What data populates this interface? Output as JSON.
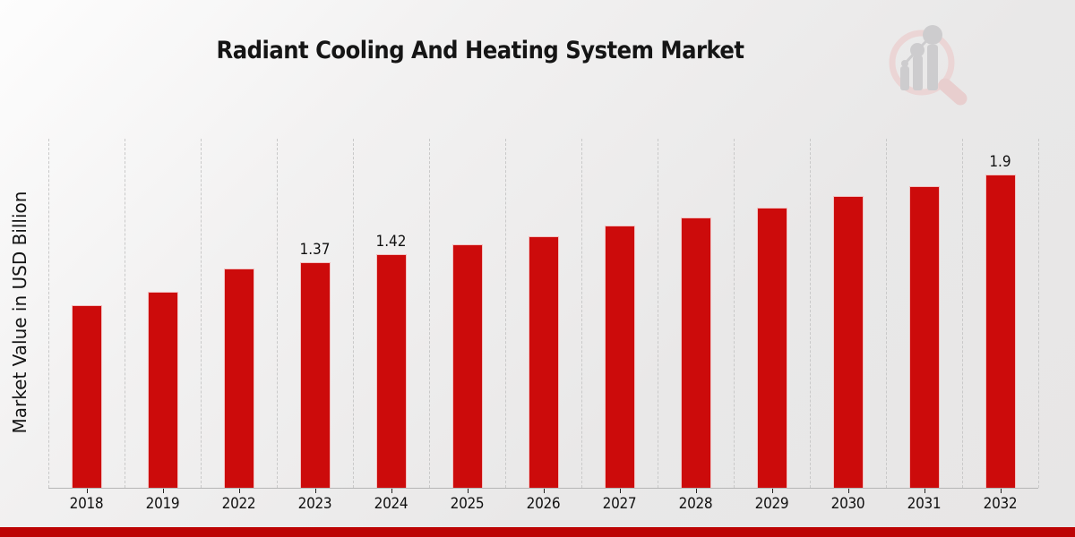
{
  "title": "Radiant Cooling And Heating System Market",
  "ylabel": "Market Value in USD Billion",
  "watermark_icon": "market-research-future-logo",
  "colors": {
    "bar": "#cc0b0b",
    "bottom_strip": "#bd0404",
    "grid": "#c9c9c9",
    "axis": "#b5b5b5",
    "text": "#111111",
    "watermark_pink": "#ecd2d2",
    "watermark_gray": "#c8c8ca"
  },
  "chart_data": {
    "type": "bar",
    "title": "Radiant Cooling And Heating System Market",
    "xlabel": "",
    "ylabel": "Market Value in USD Billion",
    "categories": [
      "2018",
      "2019",
      "2022",
      "2023",
      "2024",
      "2025",
      "2026",
      "2027",
      "2028",
      "2029",
      "2030",
      "2031",
      "2032"
    ],
    "values": [
      1.11,
      1.19,
      1.33,
      1.37,
      1.42,
      1.48,
      1.53,
      1.59,
      1.64,
      1.7,
      1.77,
      1.83,
      1.9
    ],
    "bar_labels": [
      "",
      "",
      "",
      "1.37",
      "1.42",
      "",
      "",
      "",
      "",
      "",
      "",
      "",
      "1.9"
    ],
    "ylim": [
      0,
      2.12
    ],
    "yticks_visible": false,
    "grid": "vertical-dashed",
    "legend": "none",
    "bar_color": "#cc0b0b"
  }
}
